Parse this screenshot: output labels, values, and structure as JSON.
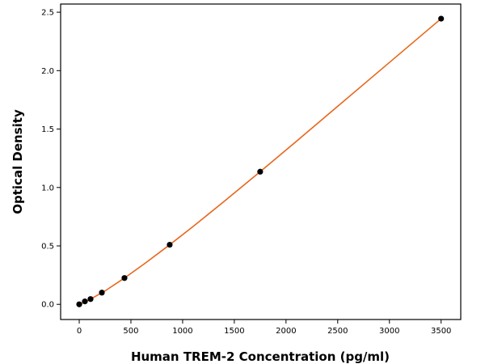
{
  "chart_data": {
    "type": "scatter",
    "title": "",
    "xlabel": "Human TREM-2 Concentration (pg/ml)",
    "ylabel": "Optical Density",
    "xlim": [
      -180,
      3690
    ],
    "ylim": [
      -0.13,
      2.57
    ],
    "x_ticks": [
      0,
      500,
      1000,
      1500,
      2000,
      2500,
      3000,
      3500
    ],
    "y_ticks": [
      0.0,
      0.5,
      1.0,
      1.5,
      2.0,
      2.5
    ],
    "grid": false,
    "legend": "none",
    "series": [
      {
        "points": [
          {
            "x": 0,
            "y": 0.0
          },
          {
            "x": 54.7,
            "y": 0.025
          },
          {
            "x": 109.4,
            "y": 0.045
          },
          {
            "x": 218.8,
            "y": 0.1
          },
          {
            "x": 437.5,
            "y": 0.225
          },
          {
            "x": 875,
            "y": 0.51
          },
          {
            "x": 1750,
            "y": 1.135
          },
          {
            "x": 3500,
            "y": 2.445
          }
        ],
        "marker_color": "#000000"
      }
    ],
    "fit_line": {
      "color": "#e8661c",
      "points": [
        {
          "x": 0,
          "y": 0.0
        },
        {
          "x": 100,
          "y": 0.04
        },
        {
          "x": 250,
          "y": 0.115
        },
        {
          "x": 437.5,
          "y": 0.225
        },
        {
          "x": 650,
          "y": 0.36
        },
        {
          "x": 875,
          "y": 0.51
        },
        {
          "x": 1100,
          "y": 0.665
        },
        {
          "x": 1400,
          "y": 0.88
        },
        {
          "x": 1750,
          "y": 1.135
        },
        {
          "x": 2100,
          "y": 1.395
        },
        {
          "x": 2500,
          "y": 1.695
        },
        {
          "x": 2900,
          "y": 1.995
        },
        {
          "x": 3200,
          "y": 2.22
        },
        {
          "x": 3500,
          "y": 2.445
        }
      ]
    }
  }
}
